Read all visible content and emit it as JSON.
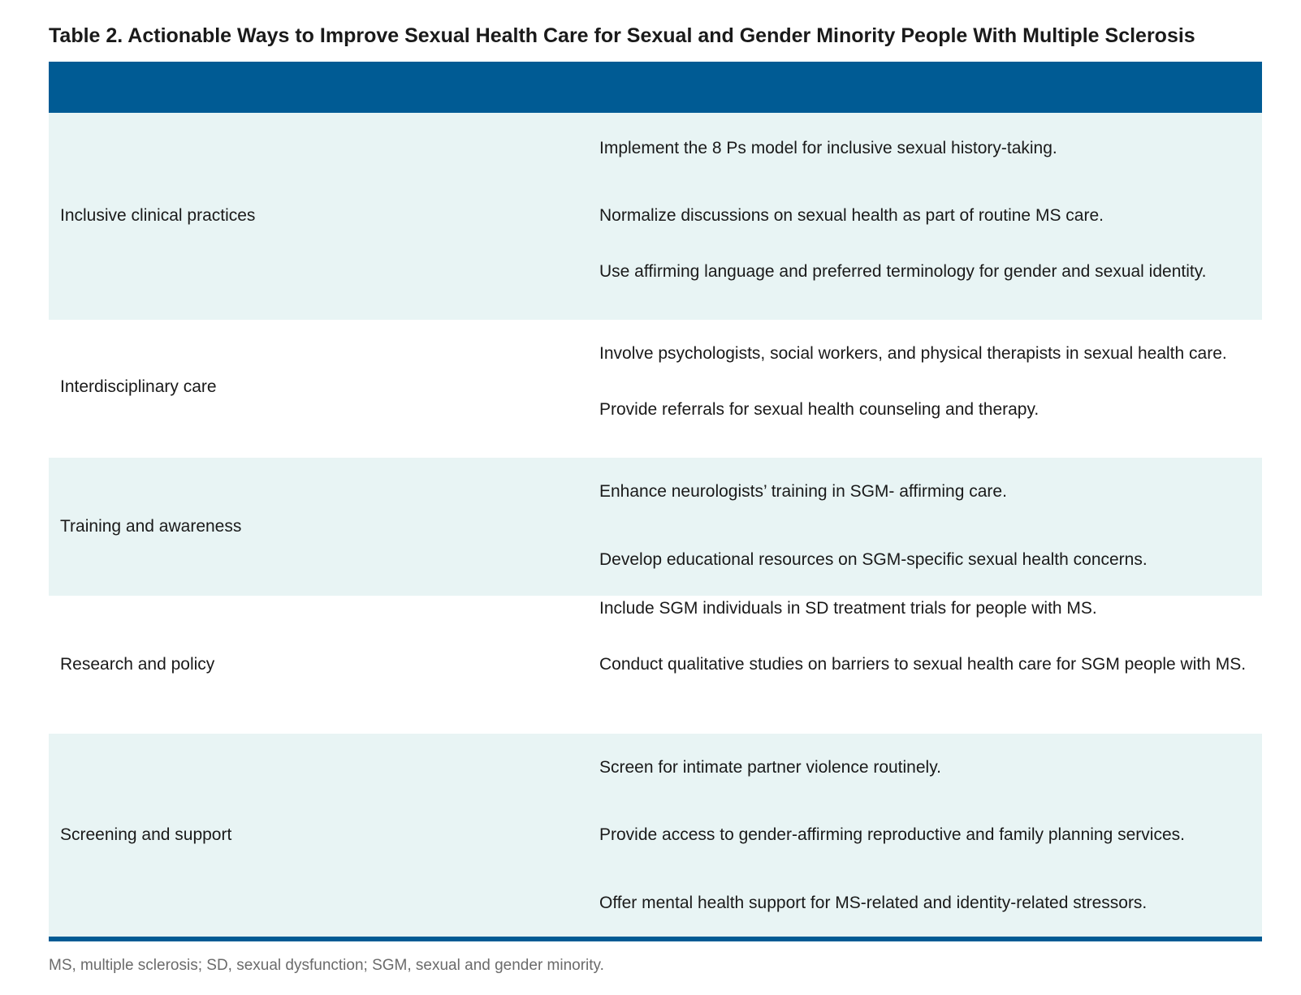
{
  "table": {
    "label": "Table 2.",
    "title": "Actionable Ways to Improve Sexual Health Care for Sexual and Gender Minority People With Multiple Sclerosis",
    "rows": [
      {
        "category": "Inclusive clinical practices",
        "actions": [
          "Implement the 8 Ps model for inclusive sexual history-taking.",
          "Normalize discussions on sexual health as part of routine MS care.",
          "Use affirming language and preferred terminology for gender and sexual identity."
        ]
      },
      {
        "category": "Interdisciplinary care",
        "actions": [
          "Involve psychologists, social workers, and physical therapists in sexual health care.",
          "Provide referrals for sexual health counseling and therapy."
        ]
      },
      {
        "category": "Training and awareness",
        "actions": [
          "Enhance neurologists’ training in SGM- affirming care.",
          "Develop educational resources on SGM-specific sexual health concerns."
        ]
      },
      {
        "category": "Research and policy",
        "actions": [
          "Include SGM individuals in SD treatment trials for people with MS.",
          "Conduct qualitative studies on barriers to sexual health care for SGM people with MS."
        ]
      },
      {
        "category": "Screening and support",
        "actions": [
          "Screen for intimate partner violence routinely.",
          "Provide access to gender-affirming reproductive and family planning services.",
          "Offer mental health support for MS-related and identity-related stressors."
        ]
      }
    ],
    "footnote": "MS, multiple sclerosis; SD, sexual dysfunction; SGM, sexual and gender minority."
  },
  "colors": {
    "header_bar": "#005b94",
    "shaded_row": "#e8f4f4",
    "footnote_text": "#6b6b6b"
  }
}
